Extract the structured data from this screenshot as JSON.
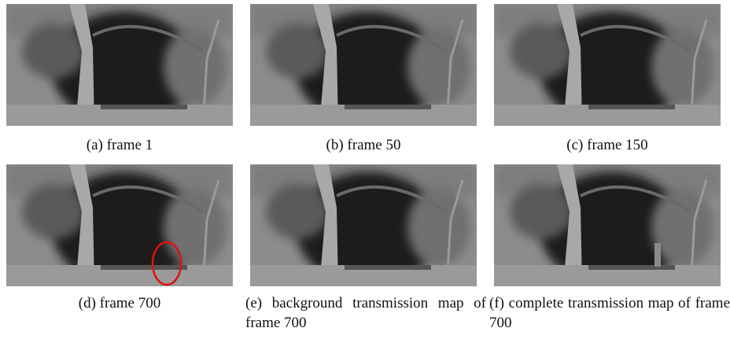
{
  "panels": [
    {
      "caption": "(a) frame 1"
    },
    {
      "caption": "(b) frame 50"
    },
    {
      "caption": "(c) frame 150"
    },
    {
      "caption": "(d) frame 700"
    },
    {
      "caption": "(e) background transmission map of frame 700"
    },
    {
      "caption": "(f) complete transmission map of frame 700"
    }
  ]
}
